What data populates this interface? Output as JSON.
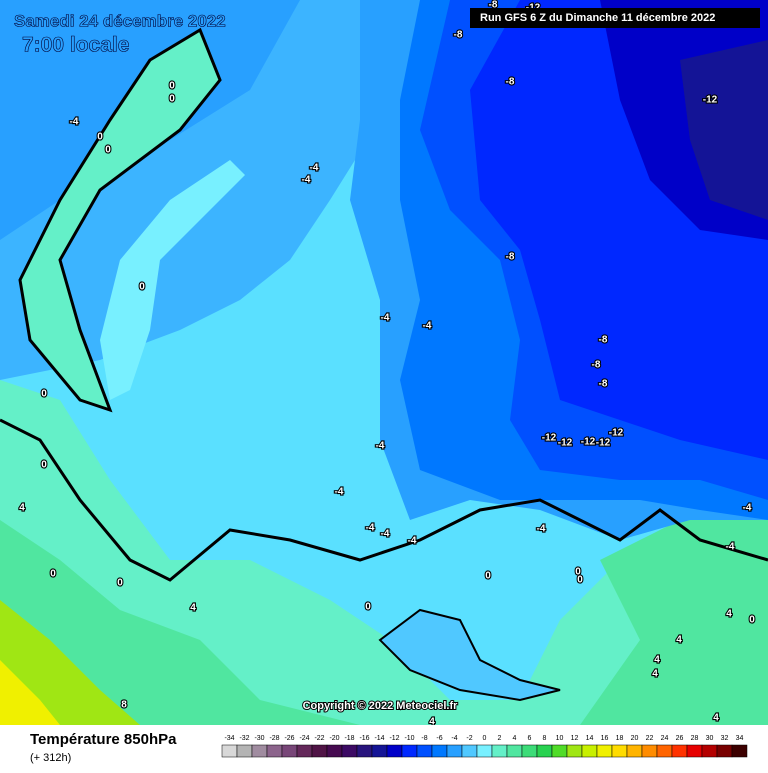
{
  "header": {
    "valid": "Samedi 24 décembre 2022",
    "time": "7:00 locale"
  },
  "run": "Run GFS 6 Z du Dimanche 11 décembre 2022",
  "map": {
    "contour_labels": [
      -8,
      -8,
      -12,
      -8,
      -12,
      -4,
      0,
      0,
      0,
      0,
      -4,
      -4,
      0,
      -8,
      -4,
      -4,
      -8,
      -8,
      -8,
      -12,
      -12,
      -12,
      -12,
      -12,
      -4,
      0,
      0,
      -4,
      -4,
      -4,
      -4,
      -4,
      -4,
      -4,
      4,
      0,
      0,
      0,
      0,
      0,
      4,
      0,
      4,
      0,
      4,
      4,
      4,
      8,
      4,
      4
    ]
  },
  "copyright": "Copyright © 2022 Meteociel.fr",
  "footer": {
    "title": "Température 850hPa",
    "lead": "(+ 312h)"
  },
  "scale": {
    "values": [
      -34,
      -32,
      -30,
      -28,
      -26,
      -24,
      -22,
      -20,
      -18,
      -16,
      -14,
      -12,
      -10,
      -8,
      -6,
      -4,
      -2,
      0,
      2,
      4,
      6,
      8,
      10,
      12,
      14,
      16,
      18,
      20,
      22,
      24,
      26,
      28,
      30,
      32,
      34
    ],
    "colors": [
      "#d8d8d8",
      "#b4b4b4",
      "#a08ca0",
      "#8c648c",
      "#784678",
      "#64285a",
      "#501446",
      "#460a50",
      "#3c0a64",
      "#28147d",
      "#141496",
      "#0000c8",
      "#0028ff",
      "#0050ff",
      "#0078ff",
      "#28a0ff",
      "#50c8ff",
      "#78f0ff",
      "#64f0c8",
      "#50e6a0",
      "#3cdc78",
      "#28d250",
      "#50dc28",
      "#a0e614",
      "#c8f000",
      "#f0f000",
      "#ffdc00",
      "#ffb400",
      "#ff8c00",
      "#ff6400",
      "#ff3200",
      "#e60000",
      "#b40000",
      "#780000",
      "#3c0000"
    ]
  }
}
